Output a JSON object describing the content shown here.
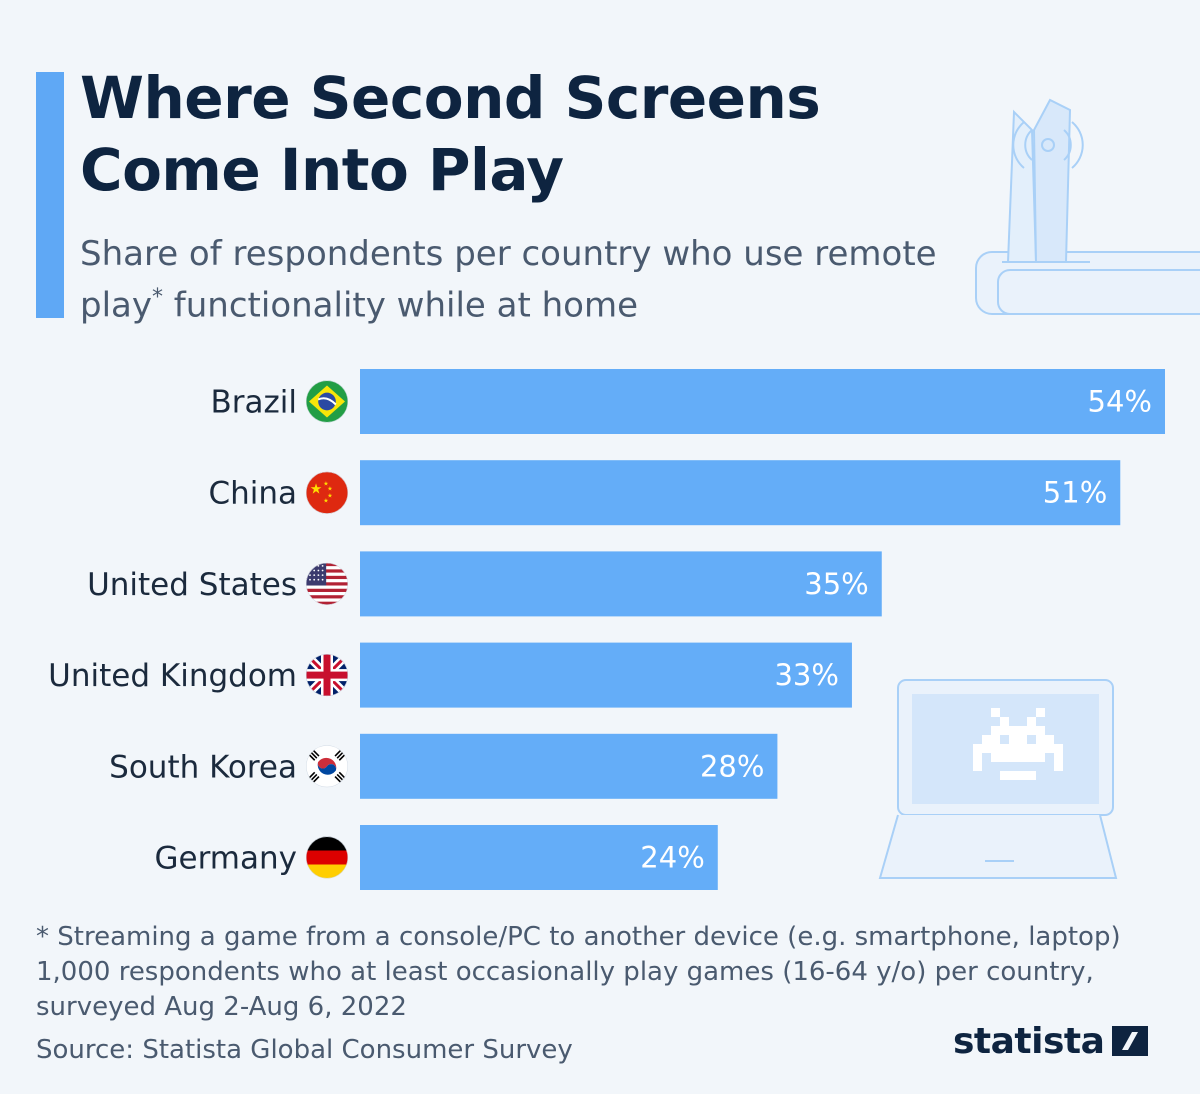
{
  "header": {
    "title": "Where Second Screens Come Into Play",
    "subtitle_part1": "Share of respondents per country who use remote play",
    "subtitle_sup": "*",
    "subtitle_part2": " functionality while at home"
  },
  "chart_data": {
    "type": "bar",
    "orientation": "horizontal",
    "categories": [
      "Brazil",
      "China",
      "United States",
      "United Kingdom",
      "South Korea",
      "Germany"
    ],
    "values": [
      54,
      51,
      35,
      33,
      28,
      24
    ],
    "value_labels": [
      "54%",
      "51%",
      "35%",
      "33%",
      "28%",
      "24%"
    ],
    "flags": [
      "brazil-flag-icon",
      "china-flag-icon",
      "usa-flag-icon",
      "uk-flag-icon",
      "south-korea-flag-icon",
      "germany-flag-icon"
    ],
    "unit": "%",
    "xlim": [
      0,
      54
    ],
    "grid": false,
    "bar_color": "#64adf8"
  },
  "footnote": {
    "line1": "* Streaming a game from a console/PC to another device (e.g. smartphone, laptop)",
    "line2": "1,000 respondents who at least occasionally play games (16-64 y/o) per country,",
    "line3": "surveyed Aug 2-Aug 6, 2022"
  },
  "source": "Source: Statista Global Consumer Survey",
  "brand": {
    "logo_text": "statista",
    "title_color": "#0e2440",
    "accent_color": "#5fa8f5",
    "background": "#f2f6fa"
  },
  "decorations": [
    "game-console-illustration",
    "laptop-illustration",
    "space-invader-icon"
  ]
}
